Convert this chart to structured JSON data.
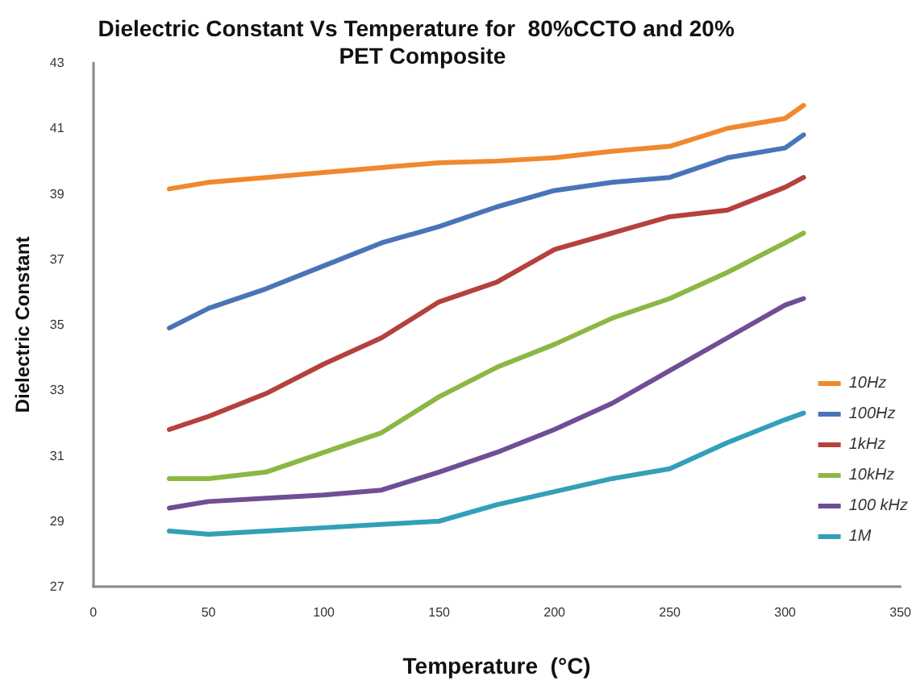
{
  "chart_data": {
    "type": "line",
    "title": "Dielectric Constant Vs Temperature for  80%CCTO and 20%  PET Composite",
    "xlabel": "Temperature  (°C)",
    "ylabel": "Dielectric Constant",
    "x": [
      33,
      50,
      75,
      100,
      125,
      150,
      175,
      200,
      225,
      250,
      275,
      300,
      308
    ],
    "series": [
      {
        "name": "10Hz",
        "color": "#f0882e",
        "values": [
          39.15,
          39.35,
          39.5,
          39.65,
          39.8,
          39.95,
          40.0,
          40.1,
          40.3,
          40.45,
          41.0,
          41.3,
          41.7
        ]
      },
      {
        "name": "100Hz",
        "color": "#4a74b8",
        "values": [
          34.9,
          35.5,
          36.1,
          36.8,
          37.5,
          38.0,
          38.6,
          39.1,
          39.35,
          39.5,
          40.1,
          40.4,
          40.8
        ]
      },
      {
        "name": "1kHz",
        "color": "#b5413d",
        "values": [
          31.8,
          32.2,
          32.9,
          33.8,
          34.6,
          35.7,
          36.3,
          37.3,
          37.8,
          38.3,
          38.5,
          39.2,
          39.5
        ]
      },
      {
        "name": "10kHz",
        "color": "#8cb744",
        "values": [
          30.3,
          30.3,
          30.5,
          31.1,
          31.7,
          32.8,
          33.7,
          34.4,
          35.2,
          35.8,
          36.6,
          37.5,
          37.8
        ]
      },
      {
        "name": "100 kHz",
        "color": "#6f4e96",
        "values": [
          29.4,
          29.6,
          29.7,
          29.8,
          29.95,
          30.5,
          31.1,
          31.8,
          32.6,
          33.6,
          34.6,
          35.6,
          35.8
        ]
      },
      {
        "name": "1M",
        "color": "#32a0b8",
        "values": [
          28.7,
          28.6,
          28.7,
          28.8,
          28.9,
          29.0,
          29.5,
          29.9,
          30.3,
          30.6,
          31.4,
          32.1,
          32.3
        ]
      }
    ],
    "xlim": [
      0,
      350
    ],
    "xticks": [
      0,
      50,
      100,
      150,
      200,
      250,
      300,
      350
    ],
    "ylim": [
      27,
      43
    ],
    "yticks": [
      27,
      29,
      31,
      33,
      35,
      37,
      39,
      41,
      43
    ],
    "grid": false,
    "legend": "right",
    "marker": "none",
    "line_style": "solid"
  }
}
